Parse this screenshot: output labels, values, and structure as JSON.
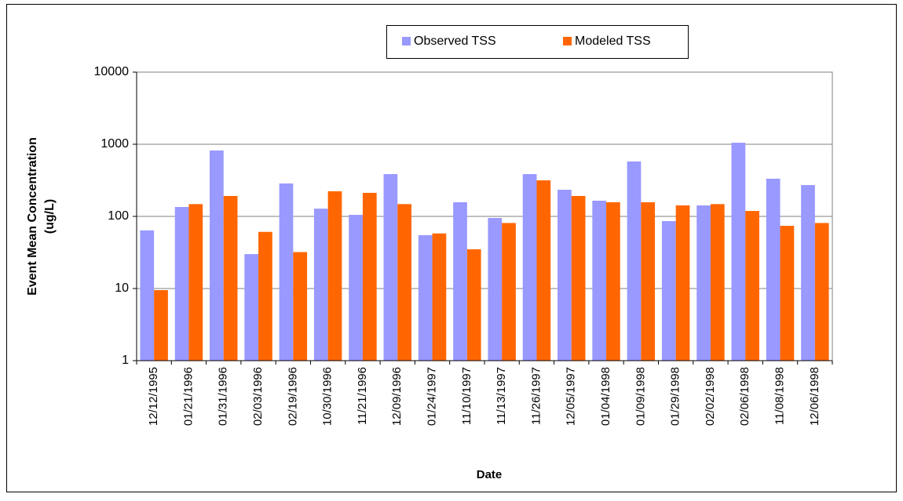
{
  "chart_data": {
    "type": "bar",
    "log_scale": true,
    "grid": true,
    "legend": "top",
    "xlabel": "Date",
    "ylabel": [
      "Event Mean Concentration",
      "(ug/L)"
    ],
    "categories": [
      "12/12/1995",
      "01/21/1996",
      "01/31/1996",
      "02/03/1996",
      "02/19/1996",
      "10/30/1996",
      "11/21/1996",
      "12/09/1996",
      "01/24/1997",
      "11/10/1997",
      "11/13/1997",
      "11/26/1997",
      "12/05/1997",
      "01/04/1998",
      "01/09/1998",
      "01/29/1998",
      "02/02/1998",
      "02/06/1998",
      "11/08/1998",
      "12/06/1998"
    ],
    "series": [
      {
        "name": "Observed TSS",
        "color": "#9999ff",
        "values": [
          64,
          135,
          820,
          30,
          286,
          128,
          105,
          386,
          55,
          157,
          95,
          386,
          234,
          165,
          577,
          86,
          142,
          1050,
          333,
          272
        ]
      },
      {
        "name": "Modeled TSS",
        "color": "#ff6600",
        "values": [
          9.5,
          148,
          192,
          61,
          32,
          223,
          212,
          148,
          58,
          35,
          81,
          316,
          192,
          157,
          157,
          142,
          148,
          119,
          74,
          81
        ]
      }
    ],
    "ylim": [
      1,
      10000
    ],
    "yticks": [
      1,
      10,
      100,
      1000,
      10000
    ]
  }
}
